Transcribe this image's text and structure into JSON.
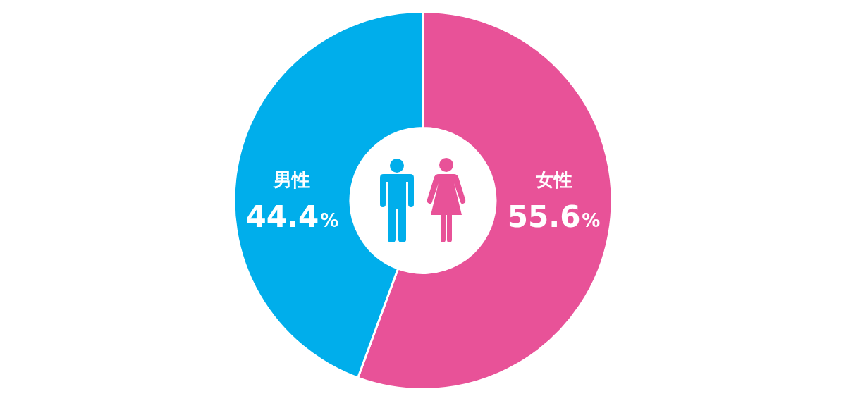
{
  "chart_data": {
    "type": "donut",
    "categories": [
      "女性",
      "男性"
    ],
    "values": [
      55.6,
      44.4
    ],
    "colors": [
      "#e85298",
      "#00aeeb"
    ],
    "value_labels": [
      "55.6%",
      "44.4%"
    ]
  }
}
